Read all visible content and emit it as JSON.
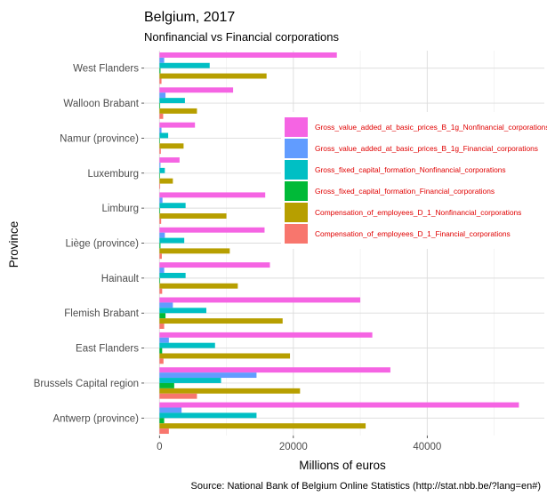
{
  "chart_data": {
    "type": "bar",
    "orientation": "horizontal",
    "title": "Belgium, 2017",
    "subtitle": "Nonfinancial vs Financial corporations",
    "xlabel": "Millions of euros",
    "ylabel": "Province",
    "caption": "Source: National Bank of Belgium Online Statistics (http://stat.nbb.be/?lang=en#)",
    "xlim": [
      -2300,
      57500
    ],
    "xticks": [
      0,
      20000,
      40000
    ],
    "xtick_labels": [
      "0",
      "20000",
      "40000"
    ],
    "grid": true,
    "legend_position": "inside-right",
    "categories": [
      "West Flanders",
      "Walloon Brabant",
      "Namur (province)",
      "Luxemburg",
      "Limburg",
      "Liège (province)",
      "Hainault",
      "Flemish Brabant",
      "East Flanders",
      "Brussels Capital region",
      "Antwerp (province)"
    ],
    "series": [
      {
        "name": "Gross_value_added_at_basic_prices_B_1g_Nonfinancial_corporations",
        "color": "#F564E3",
        "values": [
          26500,
          11000,
          5300,
          3000,
          15800,
          15700,
          16500,
          30000,
          31800,
          34500,
          53700
        ]
      },
      {
        "name": "Gross_value_added_at_basic_prices_B_1g_Financial_corporations",
        "color": "#619CFF",
        "values": [
          700,
          900,
          300,
          150,
          450,
          800,
          700,
          2000,
          1400,
          14500,
          3300
        ]
      },
      {
        "name": "Gross_fixed_capital_formation_Nonfinancial_corporations",
        "color": "#00BFC4",
        "values": [
          7500,
          3800,
          1300,
          800,
          3900,
          3700,
          3900,
          7000,
          8300,
          9200,
          14500
        ]
      },
      {
        "name": "Gross_fixed_capital_formation_Financial_corporations",
        "color": "#00BA38",
        "values": [
          150,
          100,
          50,
          50,
          100,
          150,
          100,
          900,
          400,
          2200,
          700
        ]
      },
      {
        "name": "Compensation_of_employees_D_1_Nonfinancial_corporations",
        "color": "#B79F00",
        "values": [
          16000,
          5600,
          3600,
          2000,
          10000,
          10500,
          11700,
          18400,
          19500,
          21000,
          30800
        ]
      },
      {
        "name": "Compensation_of_employees_D_1_Financial_corporations",
        "color": "#F8766D",
        "values": [
          300,
          550,
          200,
          100,
          250,
          350,
          400,
          700,
          600,
          5600,
          1400
        ]
      }
    ]
  }
}
